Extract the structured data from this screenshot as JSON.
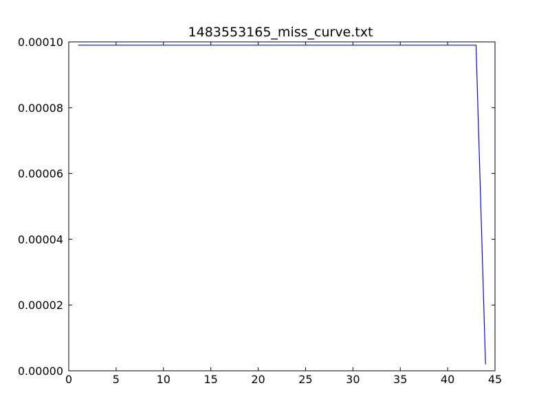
{
  "chart_data": {
    "type": "line",
    "title": "1483553165_miss_curve.txt",
    "xlabel": "",
    "ylabel": "",
    "xlim": [
      0,
      45
    ],
    "ylim": [
      0,
      0.0001
    ],
    "x_ticks": [
      0,
      5,
      10,
      15,
      20,
      25,
      30,
      35,
      40,
      45
    ],
    "x_tick_labels": [
      "0",
      "5",
      "10",
      "15",
      "20",
      "25",
      "30",
      "35",
      "40",
      "45"
    ],
    "y_ticks": [
      0,
      2e-05,
      4e-05,
      6e-05,
      8e-05,
      0.0001
    ],
    "y_tick_labels": [
      "0.00000",
      "0.00002",
      "0.00004",
      "0.00006",
      "0.00008",
      "0.00010"
    ],
    "grid": false,
    "series": [
      {
        "color": "#0000ff",
        "x": [
          1,
          2,
          3,
          4,
          5,
          6,
          7,
          8,
          9,
          10,
          11,
          12,
          13,
          14,
          15,
          16,
          17,
          18,
          19,
          20,
          21,
          22,
          23,
          24,
          25,
          26,
          27,
          28,
          29,
          30,
          31,
          32,
          33,
          34,
          35,
          36,
          37,
          38,
          39,
          40,
          41,
          42,
          43,
          44
        ],
        "y": [
          9.9e-05,
          9.9e-05,
          9.9e-05,
          9.9e-05,
          9.9e-05,
          9.9e-05,
          9.9e-05,
          9.9e-05,
          9.9e-05,
          9.9e-05,
          9.9e-05,
          9.9e-05,
          9.9e-05,
          9.9e-05,
          9.9e-05,
          9.9e-05,
          9.9e-05,
          9.9e-05,
          9.9e-05,
          9.9e-05,
          9.9e-05,
          9.9e-05,
          9.9e-05,
          9.9e-05,
          9.9e-05,
          9.9e-05,
          9.9e-05,
          9.9e-05,
          9.9e-05,
          9.9e-05,
          9.9e-05,
          9.9e-05,
          9.9e-05,
          9.9e-05,
          9.9e-05,
          9.9e-05,
          9.9e-05,
          9.9e-05,
          9.9e-05,
          9.9e-05,
          9.9e-05,
          9.9e-05,
          9.9e-05,
          2e-06
        ]
      }
    ]
  }
}
